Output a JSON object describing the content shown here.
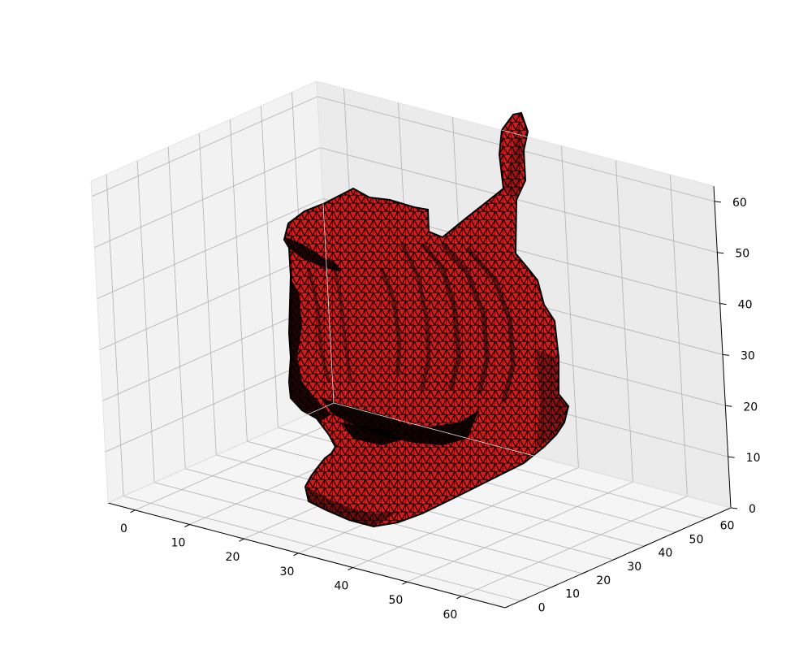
{
  "chart_data": {
    "type": "3d-surface",
    "title": "",
    "xlabel": "",
    "ylabel": "",
    "zlabel": "",
    "xlim": [
      -5,
      68
    ],
    "ylim": [
      -5,
      68
    ],
    "zlim": [
      0,
      63
    ],
    "x_ticks": [
      "0",
      "10",
      "20",
      "30",
      "40",
      "50",
      "60"
    ],
    "y_ticks": [
      "0",
      "10",
      "20",
      "30",
      "40",
      "50",
      "60"
    ],
    "z_ticks": [
      "0",
      "10",
      "20",
      "30",
      "40",
      "50",
      "60"
    ],
    "grid": true,
    "pane_colors": {
      "left": "#f2f2f2",
      "right": "#ebebeb",
      "floor": "#f5f5f5"
    },
    "mesh": {
      "object": "cat",
      "face_color": "#d41c1c",
      "edge_color": "#000000",
      "shadow_color": "#000000"
    }
  }
}
